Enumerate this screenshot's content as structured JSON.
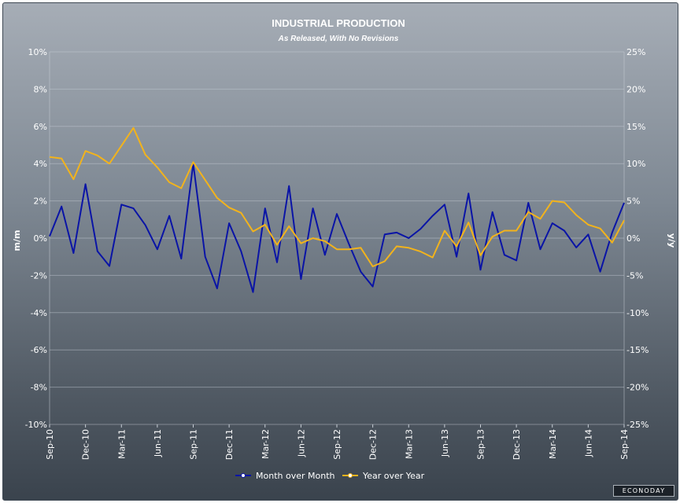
{
  "chart_data": {
    "type": "line",
    "title": "INDUSTRIAL PRODUCTION",
    "subtitle": "As Released, With No Revisions",
    "ylabel_left": "m/m",
    "ylabel_right": "y/y",
    "ylim_left": [
      -10,
      10
    ],
    "ylim_right": [
      -25,
      25
    ],
    "yticks_left": [
      "10%",
      "8%",
      "6%",
      "4%",
      "2%",
      "0%",
      "-2%",
      "-4%",
      "-6%",
      "-8%",
      "-10%"
    ],
    "yticks_right": [
      "25%",
      "20%",
      "15%",
      "10%",
      "5%",
      "0%",
      "-5%",
      "-10%",
      "-15%",
      "-20%",
      "-25%"
    ],
    "x": [
      "Sep-10",
      "Oct-10",
      "Nov-10",
      "Dec-10",
      "Jan-11",
      "Feb-11",
      "Mar-11",
      "Apr-11",
      "May-11",
      "Jun-11",
      "Jul-11",
      "Aug-11",
      "Sep-11",
      "Oct-11",
      "Nov-11",
      "Dec-11",
      "Jan-12",
      "Feb-12",
      "Mar-12",
      "Apr-12",
      "May-12",
      "Jun-12",
      "Jul-12",
      "Aug-12",
      "Sep-12",
      "Oct-12",
      "Nov-12",
      "Dec-12",
      "Jan-13",
      "Feb-13",
      "Mar-13",
      "Apr-13",
      "May-13",
      "Jun-13",
      "Jul-13",
      "Aug-13",
      "Sep-13",
      "Oct-13",
      "Nov-13",
      "Dec-13",
      "Jan-14",
      "Feb-14",
      "Mar-14",
      "Apr-14",
      "May-14",
      "Jun-14",
      "Jul-14",
      "Aug-14",
      "Sep-14"
    ],
    "xtick_labels": [
      "Sep-10",
      "Dec-10",
      "Mar-11",
      "Jun-11",
      "Sep-11",
      "Dec-11",
      "Mar-12",
      "Jun-12",
      "Sep-12",
      "Dec-12",
      "Mar-13",
      "Jun-13",
      "Sep-13",
      "Dec-13",
      "Mar-14",
      "Jun-14",
      "Sep-14"
    ],
    "series": [
      {
        "name": "Month over Month",
        "axis": "left",
        "color": "#0a14a6",
        "values": [
          0.1,
          1.7,
          -0.8,
          2.9,
          -0.7,
          -1.5,
          1.8,
          1.6,
          0.7,
          -0.6,
          1.2,
          -1.1,
          4.0,
          -1.0,
          -2.7,
          0.8,
          -0.7,
          -2.9,
          1.6,
          -1.3,
          2.8,
          -2.2,
          1.6,
          -0.9,
          1.3,
          -0.3,
          -1.8,
          -2.6,
          0.2,
          0.3,
          0.0,
          0.5,
          1.2,
          1.8,
          -1.0,
          2.4,
          -1.7,
          1.4,
          -0.9,
          -1.2,
          1.9,
          -0.6,
          0.8,
          0.4,
          -0.5,
          0.2,
          -1.8,
          0.3,
          1.9
        ]
      },
      {
        "name": "Year over Year",
        "axis": "right",
        "color": "#f2b31c",
        "values": [
          10.9,
          10.7,
          7.9,
          11.7,
          11.1,
          10.0,
          12.4,
          14.8,
          11.2,
          9.5,
          7.5,
          6.7,
          10.2,
          7.8,
          5.4,
          4.1,
          3.4,
          0.9,
          1.8,
          -0.9,
          1.6,
          -0.7,
          0.0,
          -0.4,
          -1.5,
          -1.5,
          -1.3,
          -3.8,
          -3.1,
          -1.1,
          -1.3,
          -1.8,
          -2.6,
          1.0,
          -1.1,
          2.1,
          -2.3,
          0.2,
          1.0,
          1.0,
          3.5,
          2.6,
          5.0,
          4.8,
          3.1,
          1.8,
          1.3,
          -0.6,
          2.4
        ]
      }
    ],
    "legend_position": "bottom",
    "grid": true
  },
  "branding": {
    "logo_text": "ECONODAY"
  }
}
